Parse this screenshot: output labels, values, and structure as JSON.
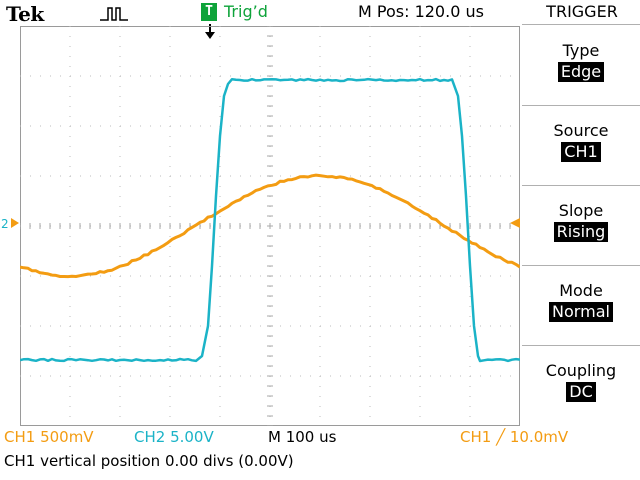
{
  "header": {
    "brand": "Tek",
    "trigger_badge": "T",
    "trigger_status": "Trig’d",
    "m_pos": "M Pos: 120.0 us"
  },
  "menu": {
    "title": "TRIGGER",
    "items": [
      {
        "label": "Type",
        "value": "Edge"
      },
      {
        "label": "Source",
        "value": "CH1"
      },
      {
        "label": "Slope",
        "value": "Rising"
      },
      {
        "label": "Mode",
        "value": "Normal"
      },
      {
        "label": "Coupling",
        "value": "DC"
      }
    ]
  },
  "markers": {
    "channel_marker": "2"
  },
  "status": {
    "ch1": "CH1  500mV",
    "ch2": "CH2  5.00V",
    "timebase": "M 100 us",
    "trigger": "CH1 ╱ 10.0mV",
    "message": "CH1 vertical position 0.00 divs (0.00V)"
  },
  "colors": {
    "ch1": "#f39c12",
    "ch2": "#1bb3c7",
    "trigger": "#0ea33a"
  }
}
